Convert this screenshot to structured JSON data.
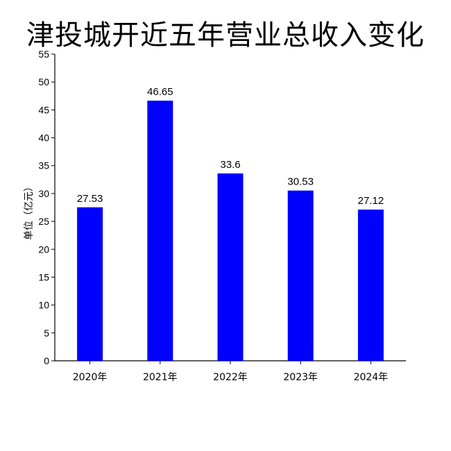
{
  "chart_data": {
    "type": "bar",
    "title": "津投城开近五年营业总收入变化",
    "ylabel": "单位（亿元）",
    "xlabel": "",
    "categories": [
      "2020年",
      "2021年",
      "2022年",
      "2023年",
      "2024年"
    ],
    "values": [
      27.53,
      46.65,
      33.6,
      30.53,
      27.12
    ],
    "value_labels": [
      "27.53",
      "46.65",
      "33.6",
      "30.53",
      "27.12"
    ],
    "ylim": [
      0,
      55
    ],
    "yticks": [
      0,
      5,
      10,
      15,
      20,
      25,
      30,
      35,
      40,
      45,
      50,
      55
    ],
    "grid": false,
    "legend": "none",
    "bar_color": "#0000ff"
  }
}
